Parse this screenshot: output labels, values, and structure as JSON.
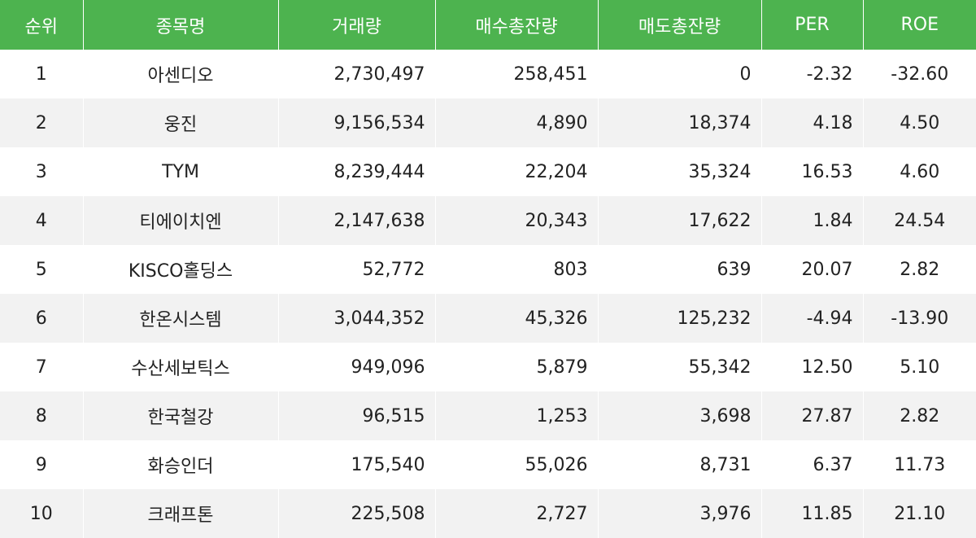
{
  "columns": [
    "순위",
    "종목명",
    "거래량",
    "매수총잔량",
    "매도총잔량",
    "PER",
    "ROE"
  ],
  "header_color": "#4db34f",
  "stripe_color": "#f2f2f2",
  "rows": [
    {
      "rank": "1",
      "name": "아센디오",
      "volume": "2,730,497",
      "bid": "258,451",
      "ask": "0",
      "per": "-2.32",
      "roe": "-32.60"
    },
    {
      "rank": "2",
      "name": "웅진",
      "volume": "9,156,534",
      "bid": "4,890",
      "ask": "18,374",
      "per": "4.18",
      "roe": "4.50"
    },
    {
      "rank": "3",
      "name": "TYM",
      "volume": "8,239,444",
      "bid": "22,204",
      "ask": "35,324",
      "per": "16.53",
      "roe": "4.60"
    },
    {
      "rank": "4",
      "name": "티에이치엔",
      "volume": "2,147,638",
      "bid": "20,343",
      "ask": "17,622",
      "per": "1.84",
      "roe": "24.54"
    },
    {
      "rank": "5",
      "name": "KISCO홀딩스",
      "volume": "52,772",
      "bid": "803",
      "ask": "639",
      "per": "20.07",
      "roe": "2.82"
    },
    {
      "rank": "6",
      "name": "한온시스템",
      "volume": "3,044,352",
      "bid": "45,326",
      "ask": "125,232",
      "per": "-4.94",
      "roe": "-13.90"
    },
    {
      "rank": "7",
      "name": "수산세보틱스",
      "volume": "949,096",
      "bid": "5,879",
      "ask": "55,342",
      "per": "12.50",
      "roe": "5.10"
    },
    {
      "rank": "8",
      "name": "한국철강",
      "volume": "96,515",
      "bid": "1,253",
      "ask": "3,698",
      "per": "27.87",
      "roe": "2.82"
    },
    {
      "rank": "9",
      "name": "화승인더",
      "volume": "175,540",
      "bid": "55,026",
      "ask": "8,731",
      "per": "6.37",
      "roe": "11.73"
    },
    {
      "rank": "10",
      "name": "크래프톤",
      "volume": "225,508",
      "bid": "2,727",
      "ask": "3,976",
      "per": "11.85",
      "roe": "21.10"
    }
  ]
}
